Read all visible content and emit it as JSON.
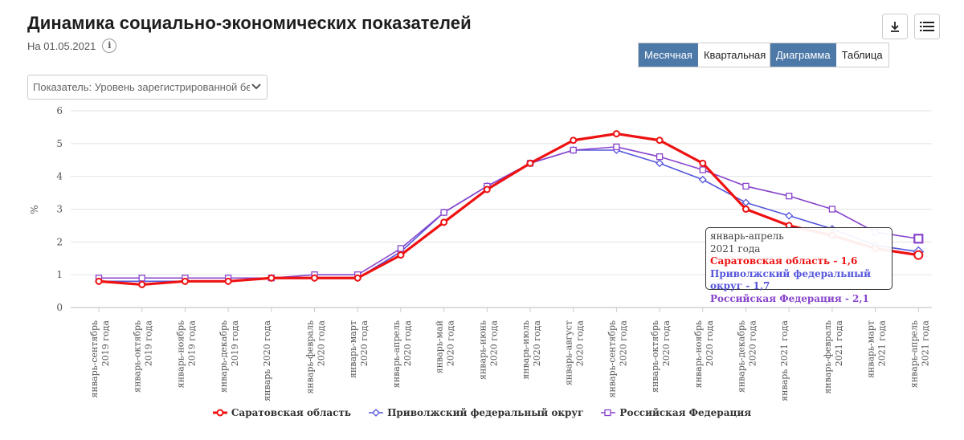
{
  "header": {
    "title": "Динамика социально-экономических показателей",
    "date": "На 01.05.2021",
    "info_icon": "info-icon",
    "download_icon": "download-icon",
    "menu_icon": "menu-icon"
  },
  "period_toggle": {
    "monthly": "Месячная",
    "quarterly": "Квартальная",
    "selected": "Месячная"
  },
  "view_toggle": {
    "chart": "Диаграмма",
    "table": "Таблица",
    "selected": "Диаграмма"
  },
  "indicator_select": {
    "value": "Показатель: Уровень зарегистрированной безработицы"
  },
  "colors": {
    "accent": "#4d79a8",
    "series_red": "#ee1111",
    "series_blue": "#5555dd",
    "series_purple": "#8844cc"
  },
  "chart_data": {
    "type": "line",
    "ylabel": "%",
    "ylim": [
      0,
      6
    ],
    "yticks": [
      0,
      1,
      2,
      3,
      4,
      5,
      6
    ],
    "grid": true,
    "legend_position": "bottom",
    "categories": [
      [
        "январь-сентябрь",
        "2019 года"
      ],
      [
        "январь-октябрь",
        "2019 года"
      ],
      [
        "январь-ноябрь",
        "2019 года"
      ],
      [
        "январь-декабрь",
        "2019 года"
      ],
      [
        "январь 2020 года",
        ""
      ],
      [
        "январь-февраль",
        "2020 года"
      ],
      [
        "январь-март",
        "2020 года"
      ],
      [
        "январь-апрель",
        "2020 года"
      ],
      [
        "январь-май",
        "2020 года"
      ],
      [
        "январь-июнь",
        "2020 года"
      ],
      [
        "январь-июль",
        "2020 года"
      ],
      [
        "январь-август",
        "2020 года"
      ],
      [
        "январь-сентябрь",
        "2020 года"
      ],
      [
        "январь-октябрь",
        "2020 года"
      ],
      [
        "январь-ноябрь",
        "2020 года"
      ],
      [
        "январь-декабрь",
        "2020 года"
      ],
      [
        "январь 2021 года",
        ""
      ],
      [
        "январь-февраль",
        "2021 года"
      ],
      [
        "январь-март",
        "2021 года"
      ],
      [
        "январь-апрель",
        "2021 года"
      ]
    ],
    "series": [
      {
        "name": "Саратовская область",
        "marker": "circle",
        "values": [
          0.8,
          0.7,
          0.8,
          0.8,
          0.9,
          0.9,
          0.9,
          1.6,
          2.6,
          3.6,
          4.4,
          5.1,
          5.3,
          5.1,
          4.4,
          3.0,
          2.5,
          2.2,
          1.8,
          1.6
        ]
      },
      {
        "name": "Приволжский федеральный округ",
        "marker": "diamond",
        "values": [
          0.8,
          0.8,
          0.8,
          0.8,
          0.9,
          0.9,
          0.9,
          1.7,
          2.9,
          3.7,
          4.4,
          4.8,
          4.8,
          4.4,
          3.9,
          3.2,
          2.8,
          2.4,
          1.9,
          1.7
        ]
      },
      {
        "name": "Российская Федерация",
        "marker": "square",
        "values": [
          0.9,
          0.9,
          0.9,
          0.9,
          0.9,
          1.0,
          1.0,
          1.8,
          2.9,
          3.7,
          4.4,
          4.8,
          4.9,
          4.6,
          4.2,
          3.7,
          3.4,
          3.0,
          2.3,
          2.1
        ]
      }
    ],
    "tooltip": {
      "period_line1": "январь-апрель",
      "period_line2": "2021 года",
      "rows": [
        "Саратовская область - 1,6",
        "Приволжский федеральный округ - 1,7",
        "Российская Федерация - 2,1"
      ],
      "category_index": 19
    }
  }
}
